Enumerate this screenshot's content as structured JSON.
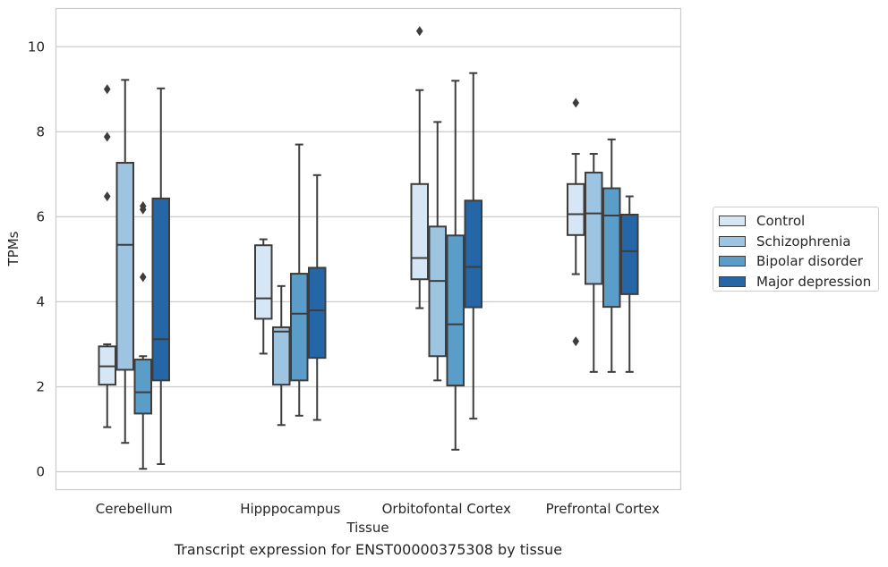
{
  "caption": "Transcript expression for ENST00000375308 by tissue",
  "chart_data": {
    "type": "boxplot",
    "xlabel": "Tissue",
    "ylabel": "TPMs",
    "ylim": [
      -0.42,
      10.9
    ],
    "yticks": [
      0,
      2,
      4,
      6,
      8,
      10
    ],
    "grid": "horizontal",
    "legend_position": "right",
    "categories": [
      "Cerebellum",
      "Hipppocampus",
      "Orbitofontal Cortex",
      "Prefrontal Cortex"
    ],
    "series": [
      {
        "name": "Control",
        "color": "#d6e6f4",
        "boxes": [
          {
            "whislo": 1.05,
            "q1": 2.05,
            "med": 2.48,
            "q3": 2.95,
            "whishi": 3.0,
            "fliers": [
              9.0,
              7.88,
              6.48
            ]
          },
          {
            "whislo": 2.78,
            "q1": 3.6,
            "med": 4.08,
            "q3": 5.33,
            "whishi": 5.47,
            "fliers": []
          },
          {
            "whislo": 3.85,
            "q1": 4.53,
            "med": 5.03,
            "q3": 6.77,
            "whishi": 8.98,
            "fliers": [
              10.37
            ]
          },
          {
            "whislo": 4.65,
            "q1": 5.57,
            "med": 6.06,
            "q3": 6.77,
            "whishi": 7.48,
            "fliers": [
              8.68,
              3.07
            ]
          }
        ]
      },
      {
        "name": "Schizophrenia",
        "color": "#9dc4e0",
        "boxes": [
          {
            "whislo": 0.68,
            "q1": 2.4,
            "med": 5.34,
            "q3": 7.27,
            "whishi": 9.22,
            "fliers": []
          },
          {
            "whislo": 1.1,
            "q1": 2.05,
            "med": 3.3,
            "q3": 3.4,
            "whishi": 4.37,
            "fliers": []
          },
          {
            "whislo": 2.15,
            "q1": 2.72,
            "med": 4.49,
            "q3": 5.77,
            "whishi": 8.23,
            "fliers": []
          },
          {
            "whislo": 2.35,
            "q1": 4.42,
            "med": 6.08,
            "q3": 7.04,
            "whishi": 7.48,
            "fliers": []
          }
        ]
      },
      {
        "name": "Bipolar disorder",
        "color": "#5a9dc9",
        "boxes": [
          {
            "whislo": 0.07,
            "q1": 1.37,
            "med": 1.87,
            "q3": 2.64,
            "whishi": 2.72,
            "fliers": [
              6.25,
              6.17,
              4.58
            ]
          },
          {
            "whislo": 1.32,
            "q1": 2.15,
            "med": 3.72,
            "q3": 4.66,
            "whishi": 7.7,
            "fliers": []
          },
          {
            "whislo": 0.52,
            "q1": 2.03,
            "med": 3.47,
            "q3": 5.56,
            "whishi": 9.2,
            "fliers": []
          },
          {
            "whislo": 2.35,
            "q1": 3.88,
            "med": 6.03,
            "q3": 6.67,
            "whishi": 7.82,
            "fliers": []
          }
        ]
      },
      {
        "name": "Major depression",
        "color": "#2567a6",
        "boxes": [
          {
            "whislo": 0.18,
            "q1": 2.15,
            "med": 3.12,
            "q3": 6.43,
            "whishi": 9.02,
            "fliers": []
          },
          {
            "whislo": 1.22,
            "q1": 2.68,
            "med": 3.8,
            "q3": 4.8,
            "whishi": 6.98,
            "fliers": []
          },
          {
            "whislo": 1.25,
            "q1": 3.87,
            "med": 4.82,
            "q3": 6.38,
            "whishi": 9.38,
            "fliers": []
          },
          {
            "whislo": 2.35,
            "q1": 4.18,
            "med": 5.19,
            "q3": 6.05,
            "whishi": 6.48,
            "fliers": []
          }
        ]
      }
    ]
  }
}
